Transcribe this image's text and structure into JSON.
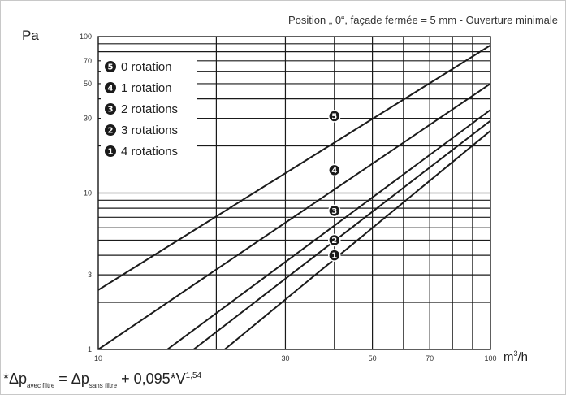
{
  "chart_data": {
    "type": "line",
    "title": "",
    "subtitle": "Position „ 0“, façade fermée = 5 mm - Ouverture minimale",
    "ylabel": "Pa",
    "xlabel_base": "m",
    "xlabel_sup": "3",
    "xlabel_tail": "/h",
    "xscale": "log",
    "yscale": "log",
    "xlim": [
      10,
      100
    ],
    "ylim": [
      1,
      100
    ],
    "grid": true,
    "legend_position": "top-left",
    "x_ticks": [
      {
        "value": 10,
        "label": "10"
      },
      {
        "value": 30,
        "label": "30"
      },
      {
        "value": 50,
        "label": "50"
      },
      {
        "value": 70,
        "label": "70"
      },
      {
        "value": 100,
        "label": "100"
      }
    ],
    "y_ticks": [
      {
        "value": 1,
        "label": "1"
      },
      {
        "value": 3,
        "label": "3"
      },
      {
        "value": 10,
        "label": "10"
      },
      {
        "value": 30,
        "label": "30"
      },
      {
        "value": 50,
        "label": "50"
      },
      {
        "value": 70,
        "label": "70"
      },
      {
        "value": 100,
        "label": "100"
      }
    ],
    "x_gridlines": [
      20,
      30,
      40,
      50,
      60,
      70,
      80,
      90
    ],
    "y_gridlines": [
      2,
      3,
      4,
      5,
      6,
      7,
      8,
      9,
      10,
      20,
      30,
      40,
      50,
      60,
      70,
      80,
      90
    ],
    "series": [
      {
        "name": "0 rotation",
        "marker": "5",
        "x": [
          10,
          100
        ],
        "y": [
          2.4,
          88
        ],
        "marker_at": [
          40,
          31
        ]
      },
      {
        "name": "1 rotation",
        "marker": "4",
        "x": [
          10,
          100
        ],
        "y": [
          1.0,
          50
        ],
        "marker_at": [
          40,
          14
        ]
      },
      {
        "name": "2 rotations",
        "marker": "3",
        "x": [
          15,
          100
        ],
        "y": [
          1.0,
          34
        ],
        "marker_at": [
          40,
          7.7
        ]
      },
      {
        "name": "3 rotations",
        "marker": "2",
        "x": [
          17.5,
          100
        ],
        "y": [
          1.0,
          29
        ],
        "marker_at": [
          40,
          5
        ]
      },
      {
        "name": "4 rotations",
        "marker": "1",
        "x": [
          21,
          100
        ],
        "y": [
          1.0,
          25
        ],
        "marker_at": [
          40,
          4
        ]
      }
    ],
    "legend_order": [
      {
        "marker": "5",
        "label": "0 rotation"
      },
      {
        "marker": "4",
        "label": "1 rotation"
      },
      {
        "marker": "3",
        "label": "2 rotations"
      },
      {
        "marker": "2",
        "label": "3 rotations"
      },
      {
        "marker": "1",
        "label": "4 rotations"
      }
    ]
  },
  "formula": {
    "prefix": "*Δp",
    "sub1": "avec filtre",
    "mid": " = Δp",
    "sub2": "sans filtre",
    "tail": " + 0,095*V",
    "exponent": "1,54"
  },
  "colors": {
    "line": "#1a1a1a",
    "grid": "#1a1a1a",
    "marker_fill": "#1a1a1a"
  }
}
